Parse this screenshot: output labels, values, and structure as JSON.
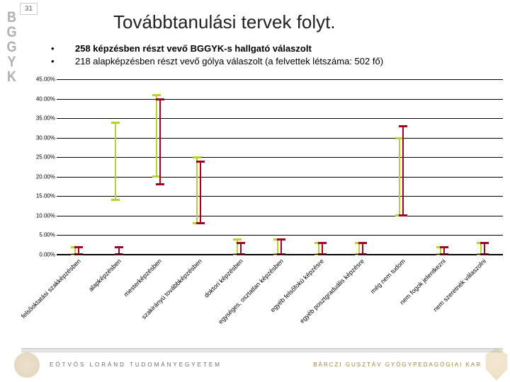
{
  "page_number": "31",
  "side_letters": [
    "B",
    "G",
    "G",
    "Y",
    "K"
  ],
  "title": "Továbbtanulási tervek folyt.",
  "bullets": [
    {
      "bold": "258 képzésben részt vevő BGGYK-s hallgató válaszolt",
      "rest": ""
    },
    {
      "bold": "",
      "rest": "218  alapképzésben részt vevő gólya válaszolt  (a felvettek létszáma: 502 fő)"
    }
  ],
  "chart": {
    "type": "hi-lo-stick",
    "y_max": 45,
    "y_step": 5,
    "y_tick_format_suffix": ".00%",
    "grid_color": "#000000",
    "background_color": "#ffffff",
    "label_fontsize": 9,
    "tick_fontsize": 8,
    "series": [
      {
        "name": "s1",
        "color": "#b7d332"
      },
      {
        "name": "s2",
        "color": "#a00028"
      }
    ],
    "categories": [
      {
        "label": "felsőoktatási szakképzésben",
        "s1": {
          "lo": 0,
          "hi": 2
        },
        "s2": {
          "lo": 0,
          "hi": 2
        }
      },
      {
        "label": "alapképzésben",
        "s1": {
          "lo": 14,
          "hi": 34
        },
        "s2": {
          "lo": 0,
          "hi": 2
        }
      },
      {
        "label": "mesterképzésben",
        "s1": {
          "lo": 20,
          "hi": 41
        },
        "s2": {
          "lo": 18,
          "hi": 40
        }
      },
      {
        "label": "szakirányú továbbképzésben",
        "s1": {
          "lo": 8,
          "hi": 25
        },
        "s2": {
          "lo": 8,
          "hi": 24
        }
      },
      {
        "label": "doktori képzésben",
        "s1": {
          "lo": 0,
          "hi": 4
        },
        "s2": {
          "lo": 0,
          "hi": 3
        }
      },
      {
        "label": "egységes, osztatlan képzésben",
        "s1": {
          "lo": 0,
          "hi": 4
        },
        "s2": {
          "lo": 0,
          "hi": 4
        }
      },
      {
        "label": "egyéb felsőfokú képzésre",
        "s1": {
          "lo": 0,
          "hi": 3
        },
        "s2": {
          "lo": 0,
          "hi": 3
        }
      },
      {
        "label": "egyéb posztgraduális képzésre",
        "s1": {
          "lo": 0,
          "hi": 3
        },
        "s2": {
          "lo": 0,
          "hi": 3
        }
      },
      {
        "label": "még nem tudom",
        "s1": {
          "lo": 10,
          "hi": 30
        },
        "s2": {
          "lo": 10,
          "hi": 33
        }
      },
      {
        "label": "nem fogok jelentkezni",
        "s1": {
          "lo": 0,
          "hi": 2
        },
        "s2": {
          "lo": 0,
          "hi": 2
        }
      },
      {
        "label": "nem szeretnék válaszolni",
        "s1": {
          "lo": 0,
          "hi": 3
        },
        "s2": {
          "lo": 0,
          "hi": 3
        }
      }
    ]
  },
  "footer_left": "EÖTVÖS LORÁND TUDOMÁNYEGYETEM",
  "footer_right": "BÁRCZI GUSZTÁV GYÓGYPEDAGÓGIAI KAR"
}
